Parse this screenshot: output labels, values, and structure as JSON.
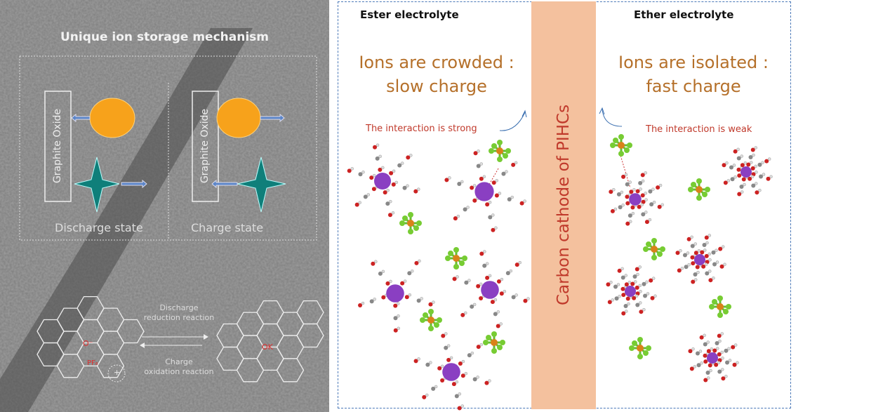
{
  "left_panel": {
    "title": "Unique ion storage mechanism",
    "graphite_label": "Graphite Oxide",
    "discharge_state": "Discharge state",
    "charge_state": "Charge state",
    "reaction_discharge_1": "Discharge",
    "reaction_discharge_2": "reduction reaction",
    "reaction_charge_1": "Charge",
    "reaction_charge_2": "oxidation reaction",
    "label_o": "O⁻",
    "label_pf6": "PF₆",
    "label_ok": "OK",
    "label_plus": "+"
  },
  "right_panel": {
    "ester_header": "Ester electrolyte",
    "ether_header": "Ether electrolyte",
    "ester_title_1": "Ions are crowded :",
    "ester_title_2": "slow charge",
    "ether_title_1": "Ions are isolated :",
    "ether_title_2": "fast charge",
    "ester_note": "The interaction is strong",
    "ether_note": "The interaction is weak",
    "cathode_label": "Carbon cathode of PIHCs"
  },
  "colors": {
    "cation": "#f7a21b",
    "anion": "#0f7f7a",
    "potassium": "#8a3fc2",
    "title_orange": "#b5702a",
    "note_red": "#c0392b",
    "cathode_bar": "#f4c19e"
  }
}
